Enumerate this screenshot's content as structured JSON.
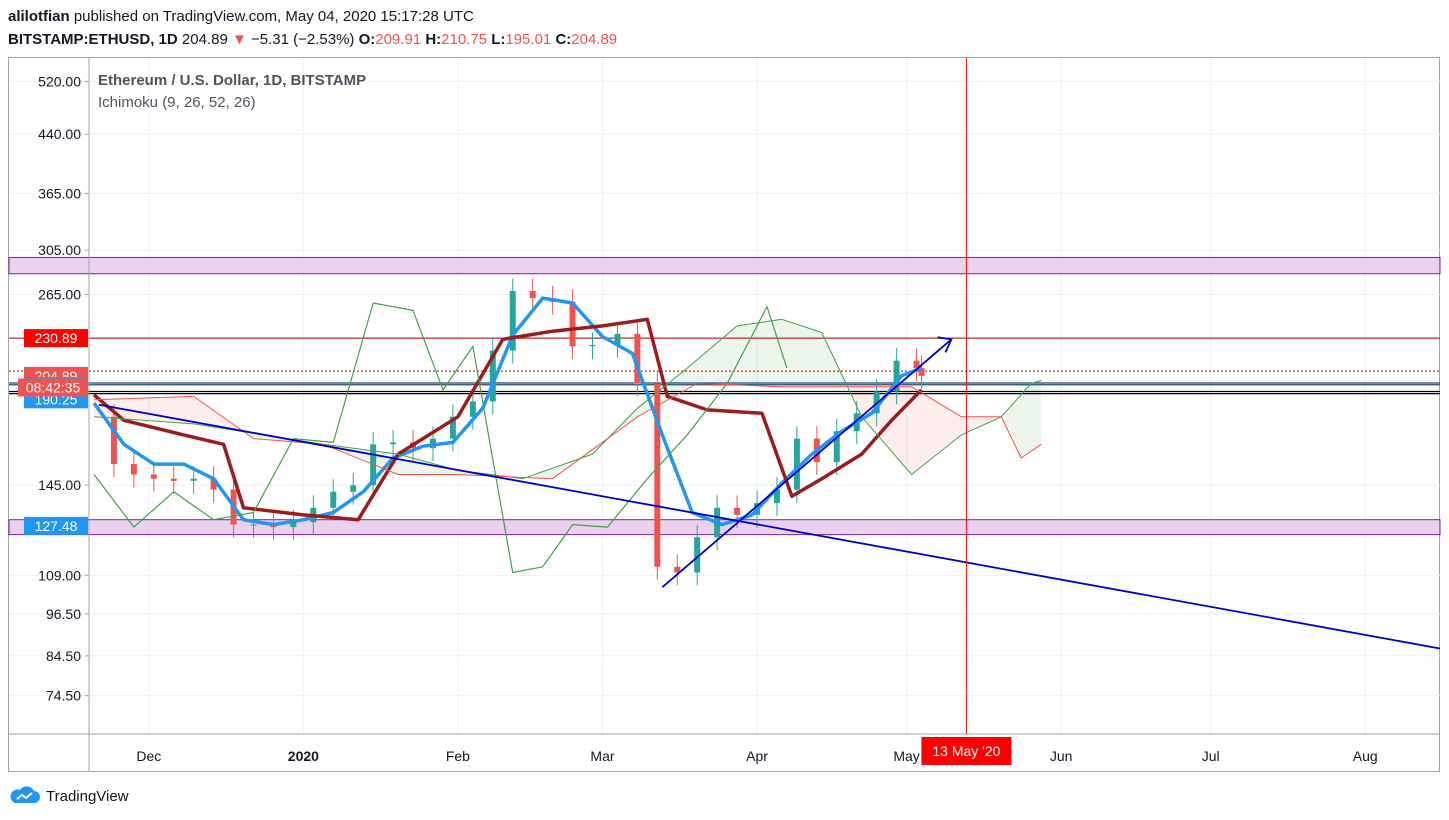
{
  "header": {
    "user": "alilotfian",
    "published": "published on TradingView.com, May 04, 2020 15:17:28 UTC",
    "symbol": "BITSTAMP:ETHUSD, 1D",
    "last": "204.89",
    "change": "−5.31 (−2.53%)",
    "o_label": "O:",
    "o": "209.91",
    "h_label": "H:",
    "h": "210.75",
    "l_label": "L:",
    "l": "195.01",
    "c_label": "C:",
    "c": "204.89",
    "down_arrow_color": "#ef5350"
  },
  "footer": {
    "brand": "TradingView",
    "logo_icon": "tradingview-cloud-icon"
  },
  "chart_data": {
    "type": "candlestick",
    "title": "Ethereum / U.S. Dollar, 1D, BITSTAMP",
    "subtitle": "Ichimoku (9, 26, 52, 26)",
    "y_scale": "log",
    "ylim": [
      66,
      560
    ],
    "y_ticks": [
      520,
      440,
      365,
      305,
      265,
      145,
      109,
      96.5,
      84.5,
      74.5
    ],
    "y_tick_labels": [
      "520.00",
      "440.00",
      "365.00",
      "305.00",
      "265.00",
      "145.00",
      "109.00",
      "96.50",
      "84.50",
      "74.50"
    ],
    "x_ticks": [
      {
        "label": "Dec",
        "date": "2019-12-01",
        "bold": false
      },
      {
        "label": "2020",
        "date": "2020-01-01",
        "bold": true
      },
      {
        "label": "Feb",
        "date": "2020-02-01",
        "bold": false
      },
      {
        "label": "Mar",
        "date": "2020-03-01",
        "bold": false
      },
      {
        "label": "Apr",
        "date": "2020-04-01",
        "bold": false
      },
      {
        "label": "May",
        "date": "2020-05-01",
        "bold": false
      },
      {
        "label": "Jun",
        "date": "2020-06-01",
        "bold": false
      },
      {
        "label": "Jul",
        "date": "2020-07-01",
        "bold": false
      },
      {
        "label": "Aug",
        "date": "2020-08-01",
        "bold": false
      }
    ],
    "xlim": [
      "2019-11-19",
      "2020-08-16"
    ],
    "grid": true,
    "price_labels": [
      {
        "value": 230.89,
        "text": "230.89",
        "color": "#ff0000"
      },
      {
        "value": 204.89,
        "text": "204.89",
        "color": "#ef5350"
      },
      {
        "value": 198.35,
        "text": "198.35",
        "color": "#2196f3"
      },
      {
        "value": 190.25,
        "text": "190.25",
        "color": "#2196f3"
      },
      {
        "value": 127.48,
        "text": "127.48",
        "color": "#2196f3"
      }
    ],
    "countdown": {
      "text": "08:42:35",
      "value": 197.5,
      "color": "#ef5350"
    },
    "cursor": {
      "date": "2020-05-13",
      "label": "13 May '20",
      "color": "#ff0000"
    },
    "zones": [
      {
        "from": 283,
        "to": 298,
        "color": "#e1bee7"
      },
      {
        "from": 124,
        "to": 130,
        "color": "#e1bee7"
      }
    ],
    "hlines": [
      {
        "value": 230.89,
        "color": "#c62828"
      },
      {
        "value": 208,
        "color": "#c62828",
        "dashed": true
      },
      {
        "value": 200.3,
        "color": "#1e4976"
      },
      {
        "value": 199.2,
        "color": "#1e4976"
      },
      {
        "value": 195.0,
        "color": "#000000"
      },
      {
        "value": 193.7,
        "color": "#000000"
      }
    ],
    "trendlines": [
      {
        "name": "",
        "from": [
          "2019-11-21",
          187
        ],
        "to": [
          "2020-08-16",
          86.5
        ],
        "color": "#0000cc"
      },
      {
        "name": "",
        "from": [
          "2020-03-13",
          105
        ],
        "to": [
          "2020-05-10",
          230
        ],
        "color": "#0000cc",
        "arrow": true
      }
    ],
    "series": [
      {
        "name": "",
        "kind": "close",
        "color": "#9e9e9e",
        "x": [
          "2019-11-20",
          "2019-11-24",
          "2019-11-28",
          "2019-12-02",
          "2019-12-06",
          "2019-12-10",
          "2019-12-14",
          "2019-12-18",
          "2019-12-22",
          "2019-12-26",
          "2019-12-30",
          "2020-01-03",
          "2020-01-07",
          "2020-01-11",
          "2020-01-15",
          "2020-01-19",
          "2020-01-23",
          "2020-01-27",
          "2020-01-31",
          "2020-02-04",
          "2020-02-08",
          "2020-02-12",
          "2020-02-16",
          "2020-02-20",
          "2020-02-24",
          "2020-02-28",
          "2020-03-04",
          "2020-03-08",
          "2020-03-12",
          "2020-03-16",
          "2020-03-20",
          "2020-03-24",
          "2020-03-28",
          "2020-04-01",
          "2020-04-05",
          "2020-04-09",
          "2020-04-13",
          "2020-04-17",
          "2020-04-21",
          "2020-04-25",
          "2020-04-29",
          "2020-05-03",
          "2020-05-04"
        ],
        "values": [
          180,
          155,
          150,
          148,
          147,
          148,
          143,
          128,
          128,
          127,
          129,
          135,
          142,
          145,
          165,
          166,
          163,
          168,
          180,
          189,
          222,
          268,
          262,
          259,
          225,
          226,
          234,
          200,
          112,
          110,
          123,
          135,
          132,
          137,
          143,
          168,
          156,
          172,
          182,
          195,
          215,
          210,
          204.89
        ]
      },
      {
        "name": "",
        "kind": "tenkan",
        "color": "#2196f3",
        "x": [
          "2019-11-20",
          "2019-11-26",
          "2019-12-02",
          "2019-12-08",
          "2019-12-14",
          "2019-12-20",
          "2019-12-26",
          "2020-01-01",
          "2020-01-07",
          "2020-01-13",
          "2020-01-19",
          "2020-01-25",
          "2020-01-31",
          "2020-02-06",
          "2020-02-12",
          "2020-02-18",
          "2020-02-24",
          "2020-03-01",
          "2020-03-07",
          "2020-03-13",
          "2020-03-19",
          "2020-03-25",
          "2020-03-31",
          "2020-04-06",
          "2020-04-12",
          "2020-04-18",
          "2020-04-24",
          "2020-04-30",
          "2020-05-04"
        ],
        "values": [
          188,
          165,
          155,
          155,
          148,
          130,
          128,
          130,
          133,
          142,
          158,
          164,
          166,
          185,
          233,
          262,
          258,
          232,
          220,
          170,
          133,
          128,
          132,
          146,
          160,
          172,
          182,
          205,
          210
        ]
      },
      {
        "name": "",
        "kind": "kijun",
        "color": "#9b1c1c",
        "x": [
          "2019-11-20",
          "2019-11-26",
          "2019-12-08",
          "2019-12-16",
          "2019-12-20",
          "2020-01-01",
          "2020-01-12",
          "2020-01-20",
          "2020-02-01",
          "2020-02-10",
          "2020-02-20",
          "2020-03-01",
          "2020-03-10",
          "2020-03-14",
          "2020-03-22",
          "2020-04-02",
          "2020-04-08",
          "2020-04-14",
          "2020-04-22",
          "2020-04-28",
          "2020-05-04"
        ],
        "values": [
          193,
          178,
          170,
          165,
          135,
          132,
          130,
          160,
          180,
          230,
          236,
          240,
          245,
          192,
          184,
          182,
          140,
          148,
          160,
          178,
          196
        ]
      },
      {
        "name": "",
        "kind": "chikou",
        "color": "#43a047",
        "x": [
          "2019-11-20",
          "2019-11-28",
          "2019-12-06",
          "2019-12-14",
          "2019-12-22",
          "2019-12-30",
          "2020-01-07",
          "2020-01-15",
          "2020-01-23",
          "2020-01-29",
          "2020-02-04",
          "2020-02-12",
          "2020-02-18",
          "2020-02-24",
          "2020-03-02",
          "2020-03-10",
          "2020-03-18",
          "2020-03-26",
          "2020-04-03",
          "2020-04-07"
        ],
        "values": [
          150,
          127,
          142,
          130,
          133,
          168,
          166,
          258,
          252,
          196,
          225,
          110,
          112,
          128,
          127,
          148,
          170,
          200,
          255,
          210
        ]
      },
      {
        "name": "",
        "kind": "senkou_a",
        "color": "#43a047",
        "x": [
          "2019-11-20",
          "2019-12-10",
          "2019-12-24",
          "2020-01-05",
          "2020-01-20",
          "2020-02-01",
          "2020-02-14",
          "2020-02-28",
          "2020-03-08",
          "2020-03-18",
          "2020-03-28",
          "2020-04-06",
          "2020-04-14",
          "2020-04-22",
          "2020-05-02",
          "2020-05-12",
          "2020-05-20",
          "2020-05-26",
          "2020-05-28"
        ],
        "values": [
          180,
          176,
          170,
          165,
          160,
          152,
          148,
          160,
          185,
          210,
          240,
          245,
          235,
          180,
          150,
          170,
          180,
          200,
          202
        ]
      },
      {
        "name": "",
        "kind": "senkou_b",
        "color": "#ef5350",
        "x": [
          "2019-11-20",
          "2019-12-10",
          "2019-12-22",
          "2020-01-05",
          "2020-01-20",
          "2020-02-01",
          "2020-02-20",
          "2020-03-08",
          "2020-03-20",
          "2020-04-06",
          "2020-04-20",
          "2020-05-02",
          "2020-05-12",
          "2020-05-20",
          "2020-05-24",
          "2020-05-28"
        ],
        "values": [
          190,
          192,
          168,
          165,
          150,
          150,
          148,
          180,
          200,
          198,
          198,
          198,
          180,
          180,
          158,
          165
        ]
      }
    ]
  }
}
